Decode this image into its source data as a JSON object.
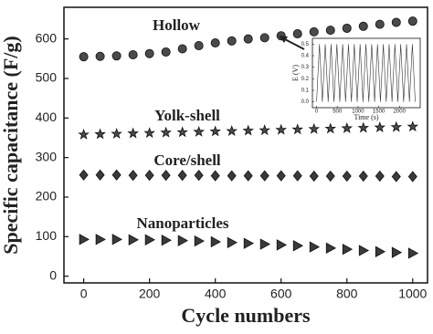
{
  "chart_data": [
    {
      "type": "scatter",
      "x_label": "Cycle numbers",
      "y_label": "Specific capacitance (F/g)",
      "xlim": [
        -60,
        1045
      ],
      "ylim": [
        -17,
        680
      ],
      "xticks": [
        0,
        200,
        400,
        600,
        800,
        1000
      ],
      "yticks": [
        0,
        100,
        200,
        300,
        400,
        500,
        600
      ],
      "x": [
        0,
        50,
        100,
        150,
        200,
        250,
        300,
        350,
        400,
        450,
        500,
        550,
        600,
        650,
        700,
        750,
        800,
        850,
        900,
        950,
        1000
      ],
      "series": [
        {
          "name": "Hollow",
          "color": "#4a4a4a",
          "marker": "circle",
          "values": [
            555,
            556,
            557,
            560,
            563,
            567,
            575,
            583,
            590,
            595,
            600,
            603,
            608,
            613,
            618,
            622,
            627,
            632,
            637,
            642,
            645
          ]
        },
        {
          "name": "Yolk-shell",
          "color": "#4a4a4a",
          "marker": "star",
          "values": [
            358,
            359,
            360,
            361,
            362,
            363,
            364,
            365,
            366,
            367,
            368,
            369,
            370,
            371,
            372,
            373,
            374,
            375,
            376,
            377,
            378
          ]
        },
        {
          "name": "Core/shell",
          "color": "#3a3a3a",
          "marker": "diamond",
          "values": [
            256,
            256,
            256,
            255,
            255,
            255,
            255,
            255,
            254,
            254,
            254,
            254,
            254,
            254,
            253,
            253,
            253,
            253,
            253,
            252,
            252
          ]
        },
        {
          "name": "Nanoparticles",
          "color": "#3a3a3a",
          "marker": "triangle-right",
          "values": [
            93,
            93,
            93,
            92,
            92,
            91,
            90,
            89,
            87,
            85,
            83,
            81,
            79,
            77,
            74,
            71,
            68,
            65,
            62,
            60,
            58
          ]
        }
      ]
    },
    {
      "type": "line",
      "x_label": "Time (s)",
      "y_label": "E (V)",
      "xlim": [
        -100,
        2500
      ],
      "ylim": [
        -0.05,
        0.55
      ],
      "xticks": [
        0,
        500,
        1000,
        1500,
        2000
      ],
      "yticks": [
        {
          "value": 0,
          "label": "0.0"
        },
        0.1,
        0.2,
        0.3,
        0.4,
        0.5
      ],
      "color": "#333333",
      "x": [
        0,
        70,
        140,
        210,
        280,
        350,
        420,
        490,
        560,
        630,
        700,
        770,
        840,
        910,
        980,
        1050,
        1120,
        1190,
        1260,
        1330,
        1400,
        1470,
        1540,
        1610,
        1680,
        1750,
        1820,
        1890,
        1960,
        2030,
        2100,
        2170,
        2240,
        2310,
        2380
      ],
      "values": [
        0,
        0.5,
        0,
        0.5,
        0,
        0.5,
        0,
        0.5,
        0,
        0.5,
        0,
        0.5,
        0,
        0.5,
        0,
        0.5,
        0,
        0.5,
        0,
        0.5,
        0,
        0.5,
        0,
        0.5,
        0,
        0.5,
        0,
        0.5,
        0,
        0.5,
        0,
        0.5,
        0,
        0.5,
        0
      ]
    }
  ]
}
